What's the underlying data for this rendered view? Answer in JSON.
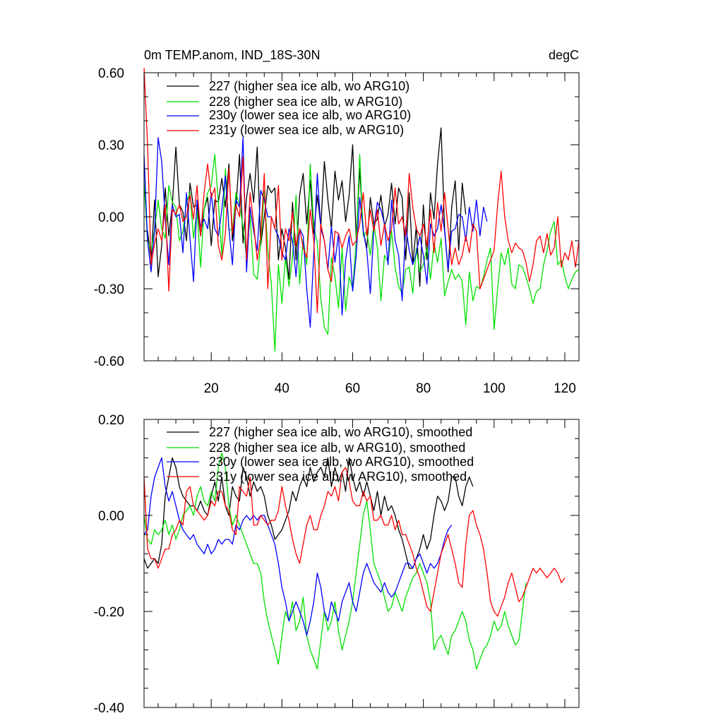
{
  "chart_data": [
    {
      "type": "line",
      "title": "0m TEMP.anom, IND_18S-30N",
      "units": "degC",
      "xlabel": "",
      "ylabel": "",
      "xlim": [
        1,
        124
      ],
      "ylim": [
        -0.6,
        0.6
      ],
      "x_ticks": [
        20,
        40,
        60,
        80,
        100,
        120
      ],
      "x_tick_labels": [
        "20",
        "40",
        "60",
        "80",
        "100",
        "120"
      ],
      "y_ticks": [
        -0.6,
        -0.3,
        0.0,
        0.3,
        0.6
      ],
      "y_tick_labels": [
        "-0.60",
        "-0.30",
        "0.00",
        "0.30",
        "0.60"
      ],
      "grid": false,
      "legend_position": "top-left",
      "series": [
        {
          "name": "227 (higher sea ice alb, wo ARG10)",
          "color": "#000000",
          "values": [
            -0.06,
            -0.06,
            -0.18,
            0.07,
            -0.25,
            -0.12,
            0.12,
            -0.08,
            0.05,
            0.29,
            0.05,
            0.02,
            -0.1,
            0.14,
            0.04,
            0.05,
            -0.08,
            0.03,
            0.08,
            -0.12,
            0.07,
            0.06,
            0.16,
            0.04,
            0.22,
            -0.1,
            0.04,
            0.26,
            -0.11,
            0.08,
            0.18,
            0.06,
            0.29,
            -0.12,
            0.0,
            0.13,
            0.1,
            0.12,
            -0.18,
            -0.05,
            -0.13,
            -0.26,
            0.06,
            -0.18,
            0.09,
            0.18,
            -0.03,
            0.15,
            -0.07,
            0.09,
            -0.04,
            0.23,
            0.07,
            -0.05,
            0.19,
            0.07,
            0.15,
            -0.02,
            0.09,
            0.3,
            -0.09,
            0.2,
            -0.06,
            -0.13,
            0.08,
            -0.03,
            -0.01,
            0.09,
            -0.04,
            0.01,
            0.14,
            -0.03,
            0.12,
            0.08,
            -0.18,
            0.1,
            -0.2,
            -0.04,
            -0.29,
            0.05,
            -0.18,
            0.1,
            -0.01,
            0.22,
            0.37,
            -0.05,
            -0.23,
            0.04,
            0.15,
            -0.14,
            0.14,
            0.01
          ]
        },
        {
          "name": "228 (higher sea ice alb, w ARG10)",
          "color": "#00e000",
          "values": [
            0.15,
            -0.1,
            -0.14,
            -0.05,
            0.07,
            -0.05,
            -0.09,
            0.13,
            0.06,
            0.04,
            -0.1,
            -0.06,
            0.06,
            0.1,
            -0.09,
            0.03,
            -0.21,
            0.03,
            0.1,
            0.13,
            0.26,
            0.06,
            -0.16,
            0.2,
            -0.05,
            -0.06,
            0.1,
            0.05,
            -0.04,
            -0.17,
            0.01,
            -0.24,
            -0.26,
            -0.11,
            0.11,
            -0.14,
            -0.28,
            -0.56,
            -0.2,
            -0.36,
            -0.17,
            -0.29,
            -0.17,
            0.09,
            -0.28,
            -0.09,
            -0.2,
            0.22,
            -0.04,
            -0.11,
            -0.34,
            -0.46,
            -0.49,
            -0.17,
            -0.25,
            -0.38,
            -0.13,
            -0.39,
            -0.25,
            -0.3,
            -0.1,
            0.26,
            -0.08,
            -0.06,
            -0.16,
            -0.03,
            -0.13,
            -0.35,
            -0.16,
            -0.19,
            -0.06,
            -0.21,
            -0.29,
            -0.32,
            -0.22,
            -0.21,
            -0.32,
            -0.13,
            -0.23,
            -0.2,
            -0.13,
            -0.26,
            -0.11,
            -0.19,
            -0.09,
            -0.33,
            -0.27,
            -0.22,
            -0.26,
            -0.24,
            -0.27,
            -0.45,
            -0.23,
            -0.35,
            -0.29,
            -0.3,
            -0.25,
            -0.18,
            -0.13,
            -0.47,
            -0.3,
            -0.15,
            -0.2,
            -0.13,
            -0.28,
            -0.3,
            -0.2,
            -0.21,
            -0.25,
            -0.3,
            -0.36,
            -0.31,
            -0.3,
            -0.2,
            -0.14,
            -0.06,
            -0.02,
            -0.2,
            -0.18,
            -0.25,
            -0.3,
            -0.26,
            -0.23,
            -0.22
          ]
        },
        {
          "name": "230y (lower sea ice alb, wo ARG10)",
          "color": "#0000ff",
          "values": [
            0.26,
            -0.1,
            -0.23,
            -0.05,
            0.33,
            0.23,
            -0.01,
            -0.2,
            0.05,
            0.0,
            0.01,
            -0.15,
            0.1,
            -0.09,
            -0.27,
            0.07,
            -0.04,
            -0.01,
            -0.05,
            0.1,
            -0.05,
            -0.08,
            0.03,
            0.17,
            -0.05,
            -0.2,
            0.07,
            0.04,
            0.33,
            -0.23,
            0.04,
            -0.06,
            -0.14,
            0.11,
            0.07,
            0.0,
            0.0,
            -0.05,
            -0.08,
            -0.15,
            -0.18,
            -0.05,
            -0.1,
            -0.25,
            -0.05,
            -0.08,
            -0.3,
            -0.46,
            -0.15,
            0.18,
            -0.05,
            -0.1,
            -0.22,
            -0.04,
            -0.19,
            -0.07,
            -0.41,
            -0.18,
            -0.08,
            -0.31,
            -0.16,
            0.08,
            -0.06,
            -0.14,
            -0.32,
            -0.05,
            0.06,
            0.03,
            -0.03,
            -0.2,
            0.07,
            -0.1,
            -0.16,
            -0.35,
            -0.04,
            -0.14,
            -0.2,
            -0.15,
            -0.08,
            -0.16,
            -0.28,
            -0.03,
            -0.08,
            -0.05,
            0.05,
            -0.06,
            -0.22,
            -0.06,
            -0.05,
            0.01,
            0.0,
            -0.1,
            0.04,
            -0.06,
            0.07,
            -0.08,
            0.04,
            -0.02
          ]
        },
        {
          "name": "231y (lower sea ice alb, w ARG10)",
          "color": "#ff0000",
          "values": [
            0.62,
            0.3,
            -0.2,
            -0.11,
            -0.05,
            -0.1,
            0.05,
            -0.31,
            0.03,
            0.01,
            0.05,
            -0.02,
            0.0,
            0.09,
            -0.01,
            0.13,
            -0.08,
            0.1,
            0.22,
            0.08,
            0.12,
            -0.12,
            -0.18,
            -0.07,
            0.2,
            -0.07,
            0.05,
            0.0,
            0.25,
            -0.18,
            0.1,
            -0.03,
            -0.18,
            -0.08,
            0.18,
            -0.3,
            0.0,
            -0.05,
            0.13,
            -0.18,
            -0.05,
            -0.1,
            0.02,
            -0.12,
            -0.05,
            -0.13,
            -0.17,
            0.03,
            -0.1,
            -0.4,
            -0.03,
            -0.1,
            -0.22,
            -0.27,
            -0.06,
            -0.07,
            -0.13,
            -0.08,
            -0.05,
            -0.12,
            -0.1,
            -0.03,
            0.1,
            -0.08,
            0.03,
            -0.06,
            0.03,
            -0.12,
            -0.03,
            -0.1,
            -0.05,
            0.12,
            -0.03,
            0.0,
            -0.08,
            0.18,
            0.04,
            -0.05,
            -0.08,
            -0.03,
            -0.12,
            0.03,
            -0.15,
            0.06,
            -0.06,
            0.1,
            -0.05,
            -0.2,
            -0.13,
            -0.2,
            -0.16,
            -0.08,
            -0.15,
            -0.03,
            -0.06,
            -0.3,
            -0.26,
            -0.22,
            -0.18,
            -0.14,
            0.05,
            0.19,
            0.0,
            -0.1,
            -0.15,
            -0.11,
            -0.13,
            -0.14,
            -0.19,
            -0.27,
            -0.2,
            -0.1,
            -0.08,
            -0.15,
            -0.07,
            -0.16,
            -0.13,
            0.0,
            -0.21,
            -0.15,
            -0.18,
            -0.1,
            -0.21,
            -0.1
          ]
        }
      ]
    },
    {
      "type": "line",
      "title": "",
      "xlabel": "",
      "ylabel": "",
      "xlim": [
        1,
        124
      ],
      "ylim": [
        -0.4,
        0.2
      ],
      "x_ticks": [
        20,
        40,
        60,
        80,
        100,
        120
      ],
      "x_tick_labels": [
        "",
        "",
        "",
        "",
        "",
        ""
      ],
      "y_ticks": [
        -0.4,
        -0.2,
        0.0,
        0.2
      ],
      "y_tick_labels": [
        "-0.40",
        "-0.20",
        "0.00",
        "0.20"
      ],
      "grid": false,
      "legend_position": "top-left",
      "series": [
        {
          "name": "227 (higher sea ice alb, wo ARG10), smoothed",
          "color": "#000000",
          "values": [
            -0.09,
            -0.11,
            -0.1,
            -0.09,
            -0.1,
            -0.06,
            0.04,
            0.08,
            0.12,
            0.1,
            0.06,
            0.04,
            0.03,
            0.02,
            0.02,
            0.01,
            0.03,
            0.01,
            0.0,
            0.04,
            0.07,
            0.03,
            0.08,
            0.02,
            0.0,
            0.06,
            0.04,
            0.03,
            0.1,
            0.08,
            0.04,
            0.07,
            0.05,
            0.06,
            0.04,
            0.0,
            -0.02,
            -0.05,
            -0.04,
            -0.03,
            -0.01,
            0.01,
            0.05,
            0.03,
            0.06,
            0.08,
            0.06,
            0.1,
            0.07,
            0.09,
            0.1,
            0.08,
            0.12,
            0.06,
            0.1,
            0.07,
            0.09,
            0.05,
            0.12,
            0.08,
            0.05,
            0.07,
            0.04,
            0.07,
            0.04,
            0.01,
            0.05,
            0.0,
            0.04,
            0.01,
            0.02,
            0.0,
            -0.03,
            -0.05,
            -0.08,
            -0.11,
            -0.11,
            -0.09,
            -0.07,
            -0.04,
            -0.07,
            -0.05,
            0.0,
            0.04,
            0.03,
            0.01,
            0.03,
            0.08,
            0.08,
            0.04,
            0.02,
            0.06,
            0.08,
            0.06
          ]
        },
        {
          "name": "228 (higher sea ice alb, w ARG10), smoothed",
          "color": "#00e000",
          "values": [
            0.0,
            -0.05,
            -0.06,
            -0.03,
            -0.04,
            -0.03,
            -0.01,
            -0.04,
            -0.02,
            -0.05,
            -0.03,
            0.0,
            0.01,
            0.02,
            0.0,
            0.04,
            0.06,
            0.03,
            0.02,
            0.05,
            0.03,
            0.1,
            0.13,
            0.1,
            0.02,
            -0.02,
            0.0,
            -0.02,
            -0.04,
            -0.06,
            -0.08,
            -0.1,
            -0.1,
            -0.12,
            -0.18,
            -0.22,
            -0.25,
            -0.28,
            -0.31,
            -0.25,
            -0.2,
            -0.22,
            -0.18,
            -0.24,
            -0.22,
            -0.17,
            -0.25,
            -0.28,
            -0.3,
            -0.32,
            -0.26,
            -0.2,
            -0.24,
            -0.22,
            -0.18,
            -0.24,
            -0.28,
            -0.25,
            -0.22,
            -0.18,
            -0.12,
            -0.06,
            0.0,
            0.03,
            -0.03,
            -0.1,
            -0.12,
            -0.14,
            -0.17,
            -0.2,
            -0.19,
            -0.16,
            -0.18,
            -0.2,
            -0.17,
            -0.15,
            -0.13,
            -0.12,
            -0.1,
            -0.12,
            -0.14,
            -0.18,
            -0.28,
            -0.26,
            -0.25,
            -0.27,
            -0.29,
            -0.25,
            -0.24,
            -0.22,
            -0.2,
            -0.22,
            -0.26,
            -0.28,
            -0.32,
            -0.3,
            -0.28,
            -0.27,
            -0.25,
            -0.22,
            -0.24,
            -0.23,
            -0.2,
            -0.23,
            -0.25,
            -0.27,
            -0.26,
            -0.2,
            -0.14
          ]
        },
        {
          "name": "230y (lower sea ice alb, wo ARG10), smoothed",
          "color": "#0000ff",
          "values": [
            -0.04,
            -0.03,
            0.04,
            0.08,
            0.1,
            0.12,
            0.06,
            0.03,
            0.05,
            0.02,
            -0.01,
            -0.03,
            -0.04,
            -0.05,
            -0.04,
            -0.06,
            -0.07,
            -0.08,
            -0.06,
            -0.08,
            -0.07,
            -0.05,
            -0.06,
            -0.05,
            -0.05,
            -0.06,
            -0.02,
            -0.03,
            -0.01,
            0.0,
            -0.01,
            0.0,
            -0.01,
            0.0,
            0.0,
            -0.02,
            -0.04,
            -0.06,
            -0.1,
            -0.15,
            -0.18,
            -0.22,
            -0.2,
            -0.18,
            -0.2,
            -0.22,
            -0.25,
            -0.22,
            -0.18,
            -0.12,
            -0.15,
            -0.2,
            -0.22,
            -0.18,
            -0.2,
            -0.22,
            -0.18,
            -0.16,
            -0.14,
            -0.18,
            -0.2,
            -0.16,
            -0.12,
            -0.1,
            -0.12,
            -0.14,
            -0.15,
            -0.16,
            -0.14,
            -0.16,
            -0.17,
            -0.16,
            -0.14,
            -0.12,
            -0.1,
            -0.1,
            -0.11,
            -0.09,
            -0.08,
            -0.1,
            -0.12,
            -0.1,
            -0.11,
            -0.1,
            -0.08,
            -0.05,
            -0.03,
            -0.02
          ]
        },
        {
          "name": "231y (lower sea ice alb, w ARG10), smoothed",
          "color": "#ff0000",
          "values": [
            0.08,
            -0.07,
            -0.09,
            -0.09,
            -0.11,
            -0.09,
            -0.07,
            -0.07,
            -0.04,
            -0.03,
            -0.01,
            -0.02,
            0.05,
            0.06,
            0.02,
            0.01,
            0.0,
            -0.01,
            0.0,
            0.03,
            0.02,
            0.05,
            0.05,
            0.02,
            0.01,
            -0.03,
            -0.04,
            0.06,
            0.05,
            0.04,
            0.08,
            -0.02,
            -0.02,
            0.0,
            -0.01,
            -0.02,
            -0.01,
            -0.01,
            0.01,
            0.06,
            0.02,
            -0.01,
            -0.05,
            -0.08,
            -0.1,
            -0.06,
            -0.02,
            0.0,
            -0.03,
            -0.03,
            0.0,
            0.02,
            0.05,
            0.04,
            0.06,
            0.03,
            0.09,
            0.1,
            0.07,
            0.03,
            0.02,
            0.02,
            0.05,
            0.03,
            0.04,
            -0.01,
            -0.01,
            0.0,
            -0.02,
            -0.02,
            0.0,
            -0.03,
            -0.01,
            -0.04,
            -0.04,
            -0.06,
            -0.08,
            -0.11,
            -0.13,
            -0.16,
            -0.19,
            -0.2,
            -0.16,
            -0.12,
            -0.08,
            -0.06,
            -0.04,
            -0.07,
            -0.1,
            -0.14,
            -0.15,
            -0.06,
            0.0,
            0.01,
            -0.02,
            -0.04,
            -0.07,
            -0.12,
            -0.18,
            -0.2,
            -0.21,
            -0.19,
            -0.17,
            -0.14,
            -0.12,
            -0.15,
            -0.18,
            -0.17,
            -0.15,
            -0.13,
            -0.11,
            -0.12,
            -0.11,
            -0.12,
            -0.13,
            -0.12,
            -0.11,
            -0.12,
            -0.14,
            -0.13
          ]
        }
      ]
    }
  ]
}
